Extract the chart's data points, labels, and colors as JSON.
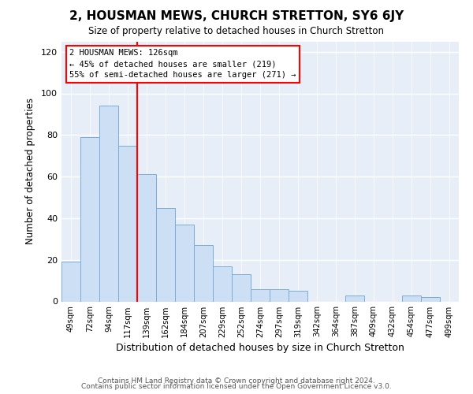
{
  "title": "2, HOUSMAN MEWS, CHURCH STRETTON, SY6 6JY",
  "subtitle": "Size of property relative to detached houses in Church Stretton",
  "xlabel": "Distribution of detached houses by size in Church Stretton",
  "ylabel": "Number of detached properties",
  "footer_line1": "Contains HM Land Registry data © Crown copyright and database right 2024.",
  "footer_line2": "Contains public sector information licensed under the Open Government Licence v3.0.",
  "bar_labels": [
    "49sqm",
    "72sqm",
    "94sqm",
    "117sqm",
    "139sqm",
    "162sqm",
    "184sqm",
    "207sqm",
    "229sqm",
    "252sqm",
    "274sqm",
    "297sqm",
    "319sqm",
    "342sqm",
    "364sqm",
    "387sqm",
    "409sqm",
    "432sqm",
    "454sqm",
    "477sqm",
    "499sqm"
  ],
  "bar_values": [
    19,
    79,
    94,
    75,
    61,
    45,
    37,
    27,
    17,
    13,
    6,
    6,
    5,
    0,
    0,
    3,
    0,
    0,
    3,
    2,
    0
  ],
  "bar_color": "#ccdff5",
  "bar_edge_color": "#7aaed6",
  "ylim": [
    0,
    125
  ],
  "yticks": [
    0,
    20,
    40,
    60,
    80,
    100,
    120
  ],
  "annotation_line1": "2 HOUSMAN MEWS: 126sqm",
  "annotation_line2": "← 45% of detached houses are smaller (219)",
  "annotation_line3": "55% of semi-detached houses are larger (271) →",
  "vline_x": 3.5,
  "background_color": "#ffffff",
  "plot_bg_color": "#e8eef8",
  "grid_color": "#ffffff"
}
